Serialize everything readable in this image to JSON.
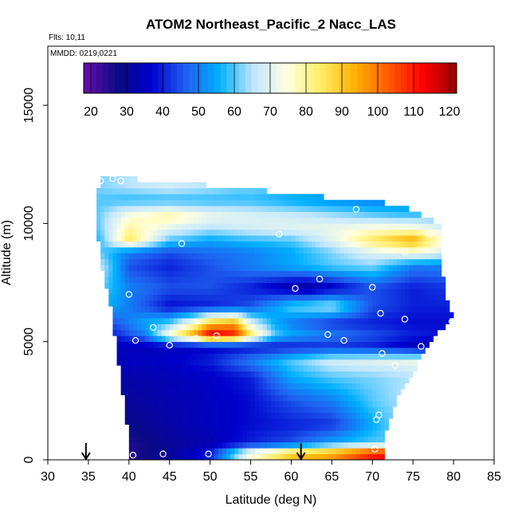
{
  "chart_data": {
    "type": "heatmap",
    "title": "ATOM2 Northeast_Pacific_2 Nacc_LAS",
    "annotations": [
      "Flts: 10,11",
      "MMDD: 0219,0221"
    ],
    "xlabel": "Latitude (deg N)",
    "ylabel": "Altitude (m)",
    "xlim": [
      30,
      85
    ],
    "ylim": [
      0,
      17500
    ],
    "x_ticks": [
      30,
      35,
      40,
      45,
      50,
      55,
      60,
      65,
      70,
      75,
      80,
      85
    ],
    "y_ticks": [
      0,
      5000,
      10000,
      15000
    ],
    "colorbar": {
      "range": [
        18,
        122
      ],
      "ticks": [
        20,
        30,
        40,
        50,
        60,
        70,
        80,
        90,
        100,
        110,
        120
      ],
      "placement": "top-inside",
      "colors": [
        "#6a0dad",
        "#0a0a85",
        "#0000cd",
        "#1f5ff0",
        "#00b0ff",
        "#bfe6ff",
        "#ffffe0",
        "#ffee66",
        "#ffb000",
        "#ff5a00",
        "#ff0000",
        "#9a0000"
      ]
    },
    "envelope": [
      {
        "alt": 250,
        "lat_min": 40.0,
        "lat_max": 71.5
      },
      {
        "alt": 1000,
        "lat_min": 39.9,
        "lat_max": 71.5
      },
      {
        "alt": 2000,
        "lat_min": 39.6,
        "lat_max": 72.5
      },
      {
        "alt": 3000,
        "lat_min": 39.2,
        "lat_max": 73.5
      },
      {
        "alt": 4000,
        "lat_min": 38.8,
        "lat_max": 75.5
      },
      {
        "alt": 5000,
        "lat_min": 38.4,
        "lat_max": 77.0
      },
      {
        "alt": 6000,
        "lat_min": 38.0,
        "lat_max": 80.0
      },
      {
        "alt": 7000,
        "lat_min": 37.4,
        "lat_max": 79.0
      },
      {
        "alt": 8000,
        "lat_min": 36.8,
        "lat_max": 78.7
      },
      {
        "alt": 9000,
        "lat_min": 36.4,
        "lat_max": 78.6
      },
      {
        "alt": 10000,
        "lat_min": 36.0,
        "lat_max": 78.5
      },
      {
        "alt": 10800,
        "lat_min": 35.8,
        "lat_max": 73.5
      },
      {
        "alt": 11500,
        "lat_min": 36.3,
        "lat_max": 53.5
      },
      {
        "alt": 11900,
        "lat_min": 36.3,
        "lat_max": 40.0
      }
    ],
    "layers": [
      {
        "alt": 300,
        "lat": [
          40,
          45,
          50,
          55,
          60,
          65,
          70,
          72
        ],
        "values": [
          25,
          30,
          40,
          75,
          90,
          95,
          110,
          112
        ]
      },
      {
        "alt": 700,
        "lat": [
          40,
          45,
          50,
          55,
          60,
          65,
          70,
          72
        ],
        "values": [
          25,
          30,
          33,
          40,
          45,
          55,
          60,
          60
        ]
      },
      {
        "alt": 1500,
        "lat": [
          40,
          45,
          50,
          55,
          60,
          65,
          70,
          72
        ],
        "values": [
          28,
          32,
          35,
          38,
          40,
          42,
          55,
          60
        ]
      },
      {
        "alt": 2500,
        "lat": [
          39,
          45,
          50,
          55,
          60,
          65,
          70,
          74
        ],
        "values": [
          30,
          33,
          35,
          38,
          45,
          50,
          60,
          65
        ]
      },
      {
        "alt": 3500,
        "lat": [
          39,
          45,
          50,
          55,
          60,
          65,
          70,
          75
        ],
        "values": [
          32,
          34,
          36,
          40,
          55,
          60,
          62,
          65
        ]
      },
      {
        "alt": 4200,
        "lat": [
          38.5,
          45,
          50,
          55,
          60,
          65,
          70,
          76
        ],
        "values": [
          35,
          36,
          40,
          50,
          60,
          68,
          70,
          72
        ]
      },
      {
        "alt": 4800,
        "lat": [
          38.5,
          45,
          50,
          55,
          60,
          65,
          70,
          77
        ],
        "values": [
          34,
          35,
          36,
          38,
          40,
          42,
          40,
          32
        ]
      },
      {
        "alt": 5300,
        "lat": [
          38,
          42,
          45,
          48,
          50,
          53,
          55,
          58,
          60,
          65,
          70,
          75,
          80
        ],
        "values": [
          40,
          50,
          75,
          95,
          115,
          110,
          85,
          60,
          55,
          50,
          45,
          40,
          38
        ]
      },
      {
        "alt": 5800,
        "lat": [
          38,
          42,
          45,
          48,
          50,
          53,
          55,
          58,
          60,
          65,
          70,
          75,
          80
        ],
        "values": [
          45,
          55,
          60,
          75,
          90,
          95,
          70,
          55,
          50,
          42,
          40,
          38,
          38
        ]
      },
      {
        "alt": 6500,
        "lat": [
          37.5,
          40,
          45,
          50,
          55,
          60,
          65,
          70,
          75,
          79
        ],
        "values": [
          55,
          50,
          38,
          40,
          45,
          60,
          65,
          45,
          40,
          40
        ]
      },
      {
        "alt": 7300,
        "lat": [
          37,
          40,
          45,
          50,
          55,
          60,
          62,
          65,
          70,
          75,
          79
        ],
        "values": [
          60,
          50,
          45,
          45,
          40,
          32,
          30,
          35,
          45,
          40,
          42
        ]
      },
      {
        "alt": 8200,
        "lat": [
          36.8,
          40,
          45,
          50,
          55,
          60,
          65,
          70,
          75,
          78.7
        ],
        "values": [
          65,
          45,
          40,
          45,
          50,
          55,
          60,
          62,
          50,
          50
        ]
      },
      {
        "alt": 8800,
        "lat": [
          36.5,
          40,
          45,
          50,
          55,
          60,
          65,
          70,
          75,
          78.6
        ],
        "values": [
          60,
          50,
          45,
          48,
          50,
          55,
          62,
          70,
          75,
          70
        ]
      },
      {
        "alt": 9300,
        "lat": [
          36.4,
          40,
          45,
          50,
          55,
          60,
          65,
          70,
          75,
          78.6
        ],
        "values": [
          58,
          85,
          60,
          55,
          58,
          60,
          70,
          85,
          95,
          75
        ]
      },
      {
        "alt": 9800,
        "lat": [
          36.2,
          40,
          45,
          50,
          55,
          60,
          65,
          70,
          75,
          78.5
        ],
        "values": [
          60,
          80,
          70,
          65,
          68,
          70,
          72,
          75,
          75,
          70
        ]
      },
      {
        "alt": 10300,
        "lat": [
          36,
          40,
          45,
          50,
          55,
          60,
          65,
          70,
          73.5
        ],
        "values": [
          60,
          75,
          80,
          72,
          70,
          68,
          65,
          62,
          60
        ]
      },
      {
        "alt": 11000,
        "lat": [
          36,
          40,
          45,
          50,
          55,
          60,
          65,
          70,
          73.5
        ],
        "values": [
          60,
          58,
          58,
          58,
          58,
          55,
          52,
          50,
          50
        ]
      },
      {
        "alt": 11600,
        "lat": [
          36.3,
          40,
          45,
          50,
          53.5
        ],
        "values": [
          62,
          65,
          68,
          65,
          62
        ]
      }
    ],
    "sample_points": [
      [
        40.5,
        200
      ],
      [
        44.2,
        250
      ],
      [
        49.8,
        250
      ],
      [
        56,
        250
      ],
      [
        70.3,
        450
      ],
      [
        70.8,
        1900
      ],
      [
        70.5,
        1700
      ],
      [
        72.8,
        4000
      ],
      [
        71.2,
        4500
      ],
      [
        76,
        4800
      ],
      [
        40.8,
        5050
      ],
      [
        45,
        4850
      ],
      [
        48.3,
        5150
      ],
      [
        50.8,
        5250
      ],
      [
        64.5,
        5300
      ],
      [
        66.5,
        5050
      ],
      [
        43,
        5600
      ],
      [
        79.8,
        5850
      ],
      [
        74,
        5950
      ],
      [
        71,
        6200
      ],
      [
        40,
        7000
      ],
      [
        60.5,
        7250
      ],
      [
        70,
        7300
      ],
      [
        63.5,
        7650
      ],
      [
        46.5,
        9150
      ],
      [
        74,
        8800
      ],
      [
        58.5,
        9550
      ],
      [
        77,
        9550
      ],
      [
        36.5,
        11800
      ],
      [
        38,
        11900
      ],
      [
        39,
        11800
      ],
      [
        68,
        10600
      ]
    ],
    "arrows": [
      34.7,
      61.2
    ]
  }
}
